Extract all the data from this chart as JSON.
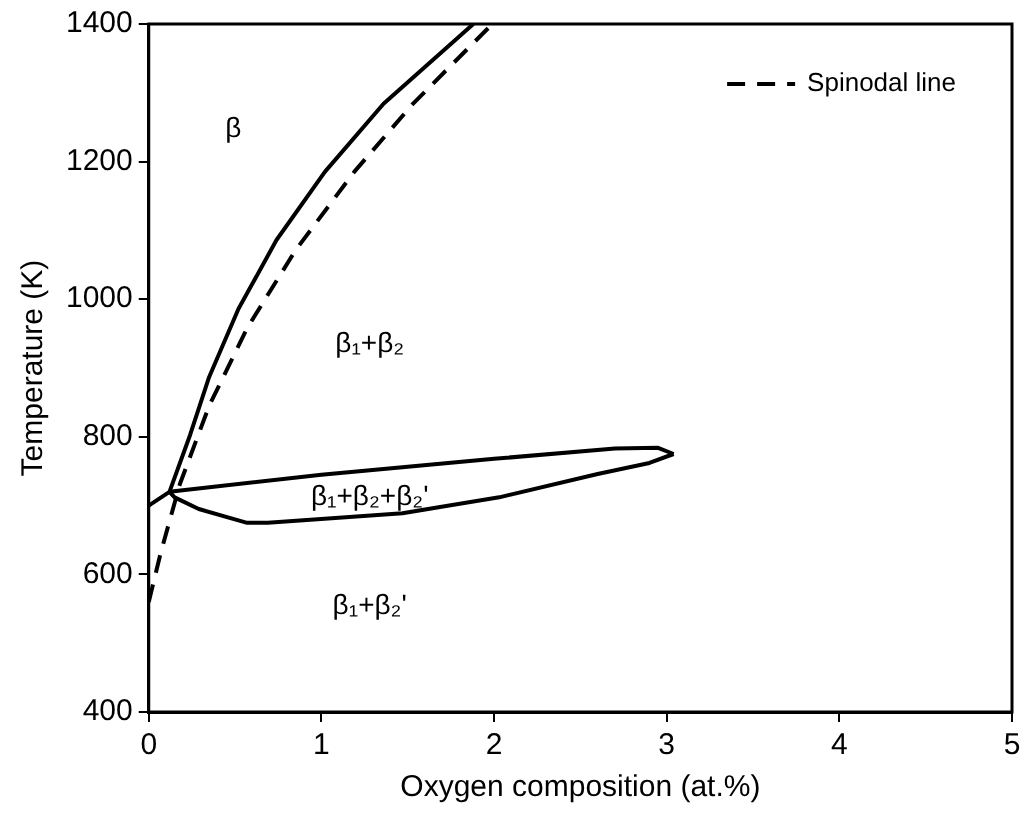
{
  "chart_data": {
    "type": "line",
    "xlabel": "Oxygen composition (at.%)",
    "ylabel": "Temperature (K)",
    "xlim": [
      0,
      5
    ],
    "xticks": [
      0,
      1,
      2,
      3,
      4,
      5
    ],
    "ylim": [
      400,
      1400
    ],
    "yticks": [
      400,
      600,
      800,
      1000,
      1200,
      1400
    ],
    "grid": false,
    "legend": "top right",
    "marker": "none",
    "series": [
      {
        "color": "#000000",
        "line_style": "solid",
        "x": [
          0,
          0.12,
          0.24,
          0.35,
          0.52,
          0.74,
          1.02,
          1.36,
          1.88
        ],
        "values": [
          700,
          720,
          803,
          887,
          986,
          1086,
          1185,
          1284,
          1400
        ]
      },
      {
        "color": "#000000",
        "line_style": "solid",
        "x": [
          0.12,
          1,
          2,
          2.7,
          2.95,
          3.04
        ],
        "values": [
          720,
          745,
          768,
          783,
          784,
          775
        ]
      },
      {
        "color": "#000000",
        "line_style": "solid",
        "x": [
          0.12,
          0.15,
          0.29,
          0.57,
          0.69,
          1.47,
          2.03,
          2.6,
          2.9,
          3.04
        ],
        "values": [
          720,
          712,
          695,
          675,
          675,
          689,
          712,
          746,
          762,
          775
        ]
      },
      {
        "name": "Spinodal line",
        "color": "#000000",
        "line_style": "dashed",
        "x": [
          0,
          0.07,
          0.18,
          0.35,
          0.57,
          0.85,
          1.19,
          1.53,
          1.99
        ],
        "values": [
          560,
          632,
          731,
          845,
          958,
          1071,
          1185,
          1284,
          1400
        ]
      }
    ],
    "annotations": [
      "β",
      "β₁+β₂",
      "β₁+β₂+β₂'",
      "β₁+β₂'"
    ]
  }
}
